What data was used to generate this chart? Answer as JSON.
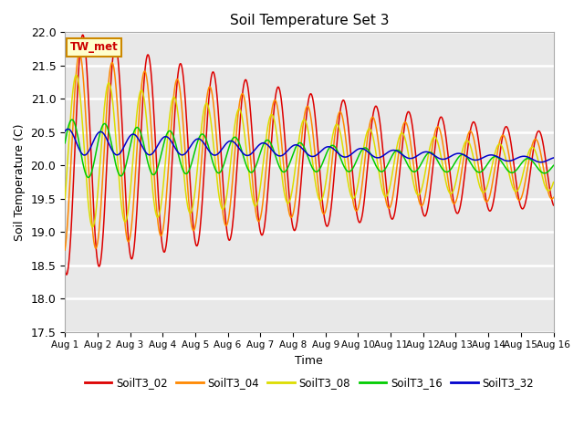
{
  "title": "Soil Temperature Set 3",
  "xlabel": "Time",
  "ylabel": "Soil Temperature (C)",
  "ylim": [
    17.5,
    22.0
  ],
  "xlim": [
    0,
    15
  ],
  "xtick_labels": [
    "Aug 1",
    "Aug 2",
    "Aug 3",
    "Aug 4",
    "Aug 5",
    "Aug 6",
    "Aug 7",
    "Aug 8",
    "Aug 9",
    "Aug 10",
    "Aug 11",
    "Aug 12",
    "Aug 13",
    "Aug 14",
    "Aug 15",
    "Aug 16"
  ],
  "ytick_values": [
    17.5,
    18.0,
    18.5,
    19.0,
    19.5,
    20.0,
    20.5,
    21.0,
    21.5,
    22.0
  ],
  "annotation": "TW_met",
  "annotation_color": "#cc0000",
  "annotation_bg": "#ffffcc",
  "annotation_border": "#cc8800",
  "series_colors": {
    "SoilT3_02": "#dd0000",
    "SoilT3_04": "#ff8800",
    "SoilT3_08": "#dddd00",
    "SoilT3_16": "#00cc00",
    "SoilT3_32": "#0000cc"
  },
  "bg_color": "#e8e8e8",
  "fig_bg": "#ffffff",
  "linewidth": 1.1
}
